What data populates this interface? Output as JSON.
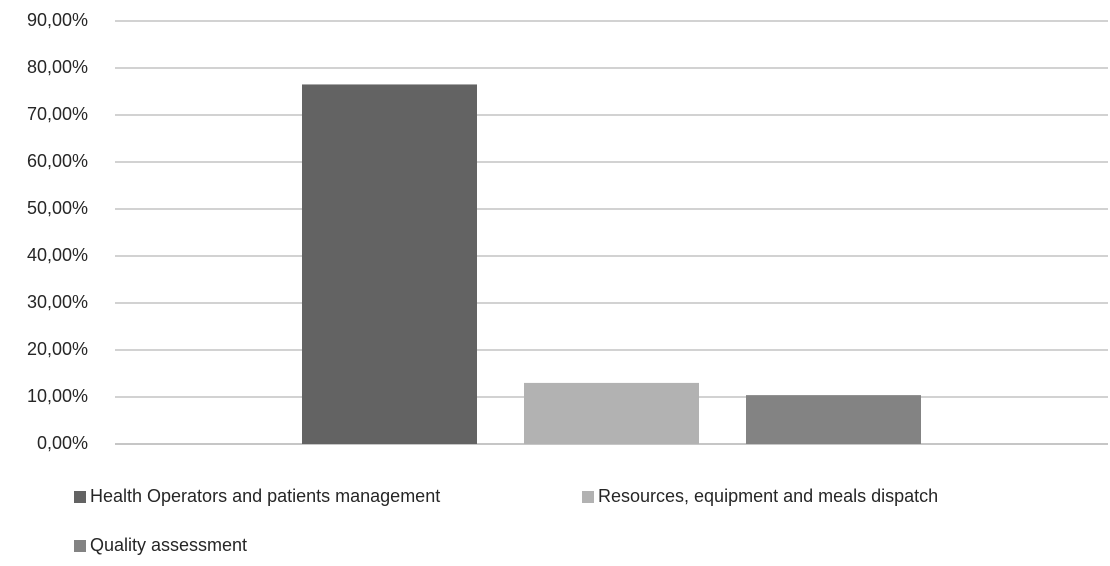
{
  "chart_data": {
    "type": "bar",
    "categories": [
      null
    ],
    "series": [
      {
        "name": "Health Operators and patients management",
        "color": "#636363",
        "values": [
          76.5
        ]
      },
      {
        "name": "Resources, equipment and meals dispatch",
        "color": "#b2b2b2",
        "values": [
          13
        ]
      },
      {
        "name": "Quality assessment",
        "color": "#838383",
        "values": [
          10.4
        ]
      }
    ],
    "ylim": [
      0,
      90
    ],
    "yticks": [
      {
        "value": 0,
        "label": "0,00%"
      },
      {
        "value": 10,
        "label": "10,00%"
      },
      {
        "value": 20,
        "label": "20,00%"
      },
      {
        "value": 30,
        "label": "30,00%"
      },
      {
        "value": 40,
        "label": "40,00%"
      },
      {
        "value": 50,
        "label": "50,00%"
      },
      {
        "value": 60,
        "label": "60,00%"
      },
      {
        "value": 70,
        "label": "70,00%"
      },
      {
        "value": 80,
        "label": "80,00%"
      },
      {
        "value": 90,
        "label": "90,00%"
      }
    ],
    "grid": true,
    "legend": "bottom"
  }
}
